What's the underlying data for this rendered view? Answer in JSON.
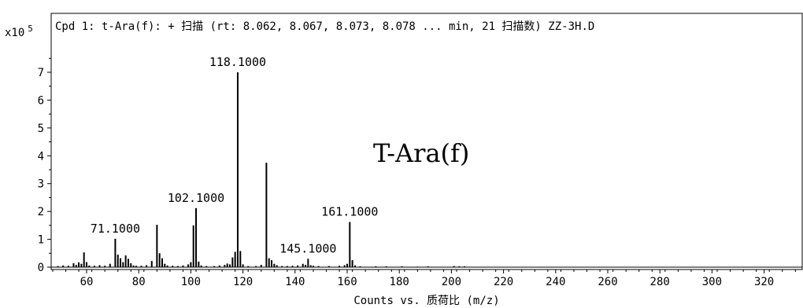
{
  "chart_data": {
    "type": "bar",
    "title": "Cpd 1: t-Ara(f): + 扫描 (rt: 8.062, 8.067, 8.073, 8.078 ... min, 21 扫描数) ZZ-3H.D",
    "xlabel": "Counts vs. 质荷比 (m/z)",
    "ylabel": "",
    "y_scale_label": "x10",
    "y_scale_exponent": "5",
    "annotation": "T-Ara(f)",
    "xlim": [
      47,
      335
    ],
    "ylim": [
      0,
      7.6
    ],
    "x_ticks": [
      60,
      80,
      100,
      120,
      140,
      160,
      180,
      200,
      220,
      240,
      260,
      280,
      300,
      320
    ],
    "y_ticks": [
      0,
      1,
      2,
      3,
      4,
      5,
      6,
      7
    ],
    "series": [
      {
        "peaks": [
          [
            49,
            0.04
          ],
          [
            51,
            0.06
          ],
          [
            53,
            0.05
          ],
          [
            55,
            0.14
          ],
          [
            56,
            0.08
          ],
          [
            57,
            0.17
          ],
          [
            58,
            0.12
          ],
          [
            59,
            0.53
          ],
          [
            60,
            0.18
          ],
          [
            61,
            0.06
          ],
          [
            63,
            0.05
          ],
          [
            65,
            0.07
          ],
          [
            67,
            0.05
          ],
          [
            69,
            0.12
          ],
          [
            71,
            1.02
          ],
          [
            72,
            0.45
          ],
          [
            73,
            0.32
          ],
          [
            74,
            0.18
          ],
          [
            75,
            0.42
          ],
          [
            76,
            0.3
          ],
          [
            77,
            0.14
          ],
          [
            78,
            0.06
          ],
          [
            79,
            0.05
          ],
          [
            81,
            0.05
          ],
          [
            83,
            0.07
          ],
          [
            85,
            0.22
          ],
          [
            87,
            1.52
          ],
          [
            88,
            0.5
          ],
          [
            89,
            0.32
          ],
          [
            90,
            0.12
          ],
          [
            91,
            0.06
          ],
          [
            93,
            0.05
          ],
          [
            95,
            0.04
          ],
          [
            97,
            0.06
          ],
          [
            99,
            0.1
          ],
          [
            100,
            0.18
          ],
          [
            101,
            1.5
          ],
          [
            102,
            2.12
          ],
          [
            103,
            0.2
          ],
          [
            104,
            0.06
          ],
          [
            106,
            0.04
          ],
          [
            109,
            0.04
          ],
          [
            111,
            0.06
          ],
          [
            113,
            0.08
          ],
          [
            114,
            0.13
          ],
          [
            115,
            0.1
          ],
          [
            116,
            0.35
          ],
          [
            117,
            0.55
          ],
          [
            118,
            7.0
          ],
          [
            119,
            0.58
          ],
          [
            120,
            0.1
          ],
          [
            122,
            0.04
          ],
          [
            125,
            0.04
          ],
          [
            127,
            0.08
          ],
          [
            129,
            3.75
          ],
          [
            130,
            0.32
          ],
          [
            131,
            0.25
          ],
          [
            132,
            0.12
          ],
          [
            133,
            0.07
          ],
          [
            135,
            0.04
          ],
          [
            137,
            0.04
          ],
          [
            139,
            0.05
          ],
          [
            141,
            0.06
          ],
          [
            143,
            0.12
          ],
          [
            144,
            0.08
          ],
          [
            145,
            0.3
          ],
          [
            146,
            0.07
          ],
          [
            147,
            0.05
          ],
          [
            149,
            0.04
          ],
          [
            153,
            0.04
          ],
          [
            157,
            0.05
          ],
          [
            159,
            0.07
          ],
          [
            160,
            0.12
          ],
          [
            161,
            1.62
          ],
          [
            162,
            0.25
          ],
          [
            163,
            0.06
          ],
          [
            165,
            0.03
          ],
          [
            171,
            0.03
          ],
          [
            175,
            0.03
          ],
          [
            181,
            0.03
          ],
          [
            187,
            0.02
          ],
          [
            191,
            0.03
          ],
          [
            201,
            0.04
          ],
          [
            203,
            0.03
          ],
          [
            205,
            0.03
          ]
        ]
      }
    ],
    "peak_labels": [
      {
        "x": 71,
        "y": 1.02,
        "text": "71.1000"
      },
      {
        "x": 102,
        "y": 2.12,
        "text": "102.1000"
      },
      {
        "x": 118,
        "y": 7.0,
        "text": "118.1000"
      },
      {
        "x": 145,
        "y": 0.3,
        "text": "145.1000"
      },
      {
        "x": 161,
        "y": 1.62,
        "text": "161.1000"
      }
    ]
  }
}
